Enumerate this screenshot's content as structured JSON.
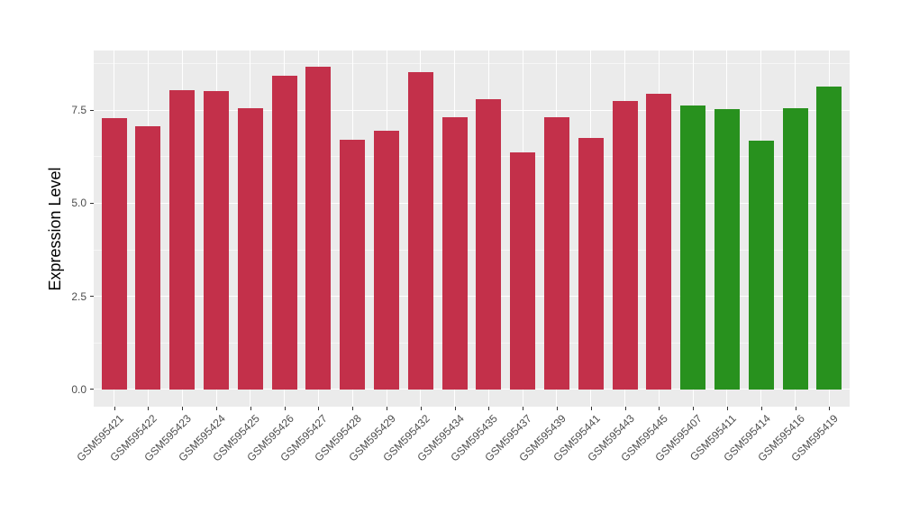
{
  "figure": {
    "background": "#FFFFFF",
    "panel_background": "#EBEBEB",
    "grid_major_color": "#FFFFFF",
    "grid_minor_color": "#FFFFFF",
    "axis_text_color": "#4D4D4D",
    "tick_mark_color": "#333333"
  },
  "chart_data": {
    "type": "bar",
    "title": "",
    "xlabel": "",
    "ylabel": "Expression Level",
    "legend_position": "none",
    "grid": true,
    "y_ticks": [
      0.0,
      2.5,
      5.0,
      7.5
    ],
    "y_tick_labels": [
      "0.0",
      "2.5",
      "5.0",
      "7.5"
    ],
    "y_minor_ticks": [
      1.25,
      3.75,
      6.25,
      8.75
    ],
    "y_range": [
      -0.46,
      9.1
    ],
    "bar_colors": {
      "red": "#C3304A",
      "green": "#28911E"
    },
    "categories": [
      "GSM595421",
      "GSM595422",
      "GSM595423",
      "GSM595424",
      "GSM595425",
      "GSM595426",
      "GSM595427",
      "GSM595428",
      "GSM595429",
      "GSM595432",
      "GSM595434",
      "GSM595435",
      "GSM595437",
      "GSM595439",
      "GSM595441",
      "GSM595443",
      "GSM595445",
      "GSM595407",
      "GSM595411",
      "GSM595414",
      "GSM595416",
      "GSM595419"
    ],
    "bars": [
      {
        "label": "GSM595421",
        "value": 7.28,
        "group": "red"
      },
      {
        "label": "GSM595422",
        "value": 7.06,
        "group": "red"
      },
      {
        "label": "GSM595423",
        "value": 8.04,
        "group": "red"
      },
      {
        "label": "GSM595424",
        "value": 8.01,
        "group": "red"
      },
      {
        "label": "GSM595425",
        "value": 7.55,
        "group": "red"
      },
      {
        "label": "GSM595426",
        "value": 8.43,
        "group": "red"
      },
      {
        "label": "GSM595427",
        "value": 8.66,
        "group": "red"
      },
      {
        "label": "GSM595428",
        "value": 6.7,
        "group": "red"
      },
      {
        "label": "GSM595429",
        "value": 6.95,
        "group": "red"
      },
      {
        "label": "GSM595432",
        "value": 8.51,
        "group": "red"
      },
      {
        "label": "GSM595434",
        "value": 7.3,
        "group": "red"
      },
      {
        "label": "GSM595435",
        "value": 7.79,
        "group": "red"
      },
      {
        "label": "GSM595437",
        "value": 6.37,
        "group": "red"
      },
      {
        "label": "GSM595439",
        "value": 7.3,
        "group": "red"
      },
      {
        "label": "GSM595441",
        "value": 6.76,
        "group": "red"
      },
      {
        "label": "GSM595443",
        "value": 7.74,
        "group": "red"
      },
      {
        "label": "GSM595445",
        "value": 7.95,
        "group": "red"
      },
      {
        "label": "GSM595407",
        "value": 7.63,
        "group": "green"
      },
      {
        "label": "GSM595411",
        "value": 7.52,
        "group": "green"
      },
      {
        "label": "GSM595414",
        "value": 6.67,
        "group": "green"
      },
      {
        "label": "GSM595416",
        "value": 7.56,
        "group": "green"
      },
      {
        "label": "GSM595419",
        "value": 8.13,
        "group": "green"
      }
    ]
  }
}
